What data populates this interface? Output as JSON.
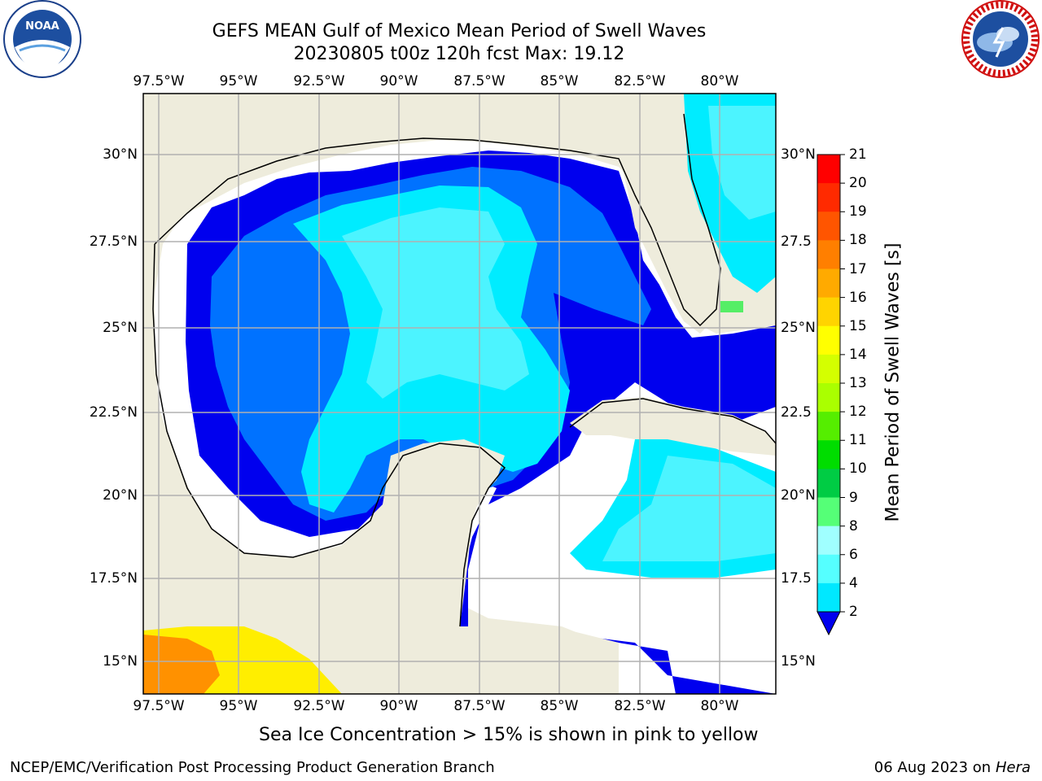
{
  "header": {
    "title_line1": "GEFS MEAN Gulf of Mexico Mean Period of Swell Waves",
    "title_line2": "20230805 t00z 120h fcst   Max: 19.12"
  },
  "logos": {
    "left": "noaa-logo",
    "right": "national-weather-service-logo"
  },
  "map": {
    "lon_labels": [
      "97.5°W",
      "95°W",
      "92.5°W",
      "90°W",
      "87.5°W",
      "85°W",
      "82.5°W",
      "80°W"
    ],
    "lat_labels_left": [
      "30°N",
      "27.5°N",
      "25°N",
      "22.5°N",
      "20°N",
      "17.5°N",
      "15°N"
    ],
    "lat_labels_right": [
      "30°N",
      "27.5",
      "25°N",
      "22.5",
      "20°N",
      "17.5",
      "15°N"
    ],
    "colors": {
      "land": "#eeecdc",
      "ocean_blue": "#0000ee",
      "light_blue": "#0072ff",
      "cyan": "#00ecff",
      "pale_cyan": "#4cf4ff",
      "seaice_orange": "#ff9100",
      "seaice_yellow": "#ffee00"
    }
  },
  "colorbar": {
    "label": "Mean Period of Swell Waves [s]",
    "ticks": [
      "21",
      "20",
      "19",
      "18",
      "17",
      "16",
      "15",
      "14",
      "13",
      "12",
      "11",
      "10",
      "9",
      "8",
      "6",
      "4",
      "2"
    ],
    "colors": [
      "#ff0000",
      "#ff2a00",
      "#ff5500",
      "#ff7f00",
      "#ffaa00",
      "#ffd400",
      "#ffff00",
      "#d4ff00",
      "#aaff00",
      "#55ee00",
      "#00dd00",
      "#00cc44",
      "#55ff77",
      "#a0ffff",
      "#55ffff",
      "#00e8ff",
      "#0072ff"
    ]
  },
  "caption": "Sea Ice Concentration > 15% is shown in pink to yellow",
  "footer": {
    "left": "NCEP/EMC/Verification Post Processing Product Generation Branch",
    "right_date": "06 Aug 2023 on",
    "right_host": "Hera"
  }
}
